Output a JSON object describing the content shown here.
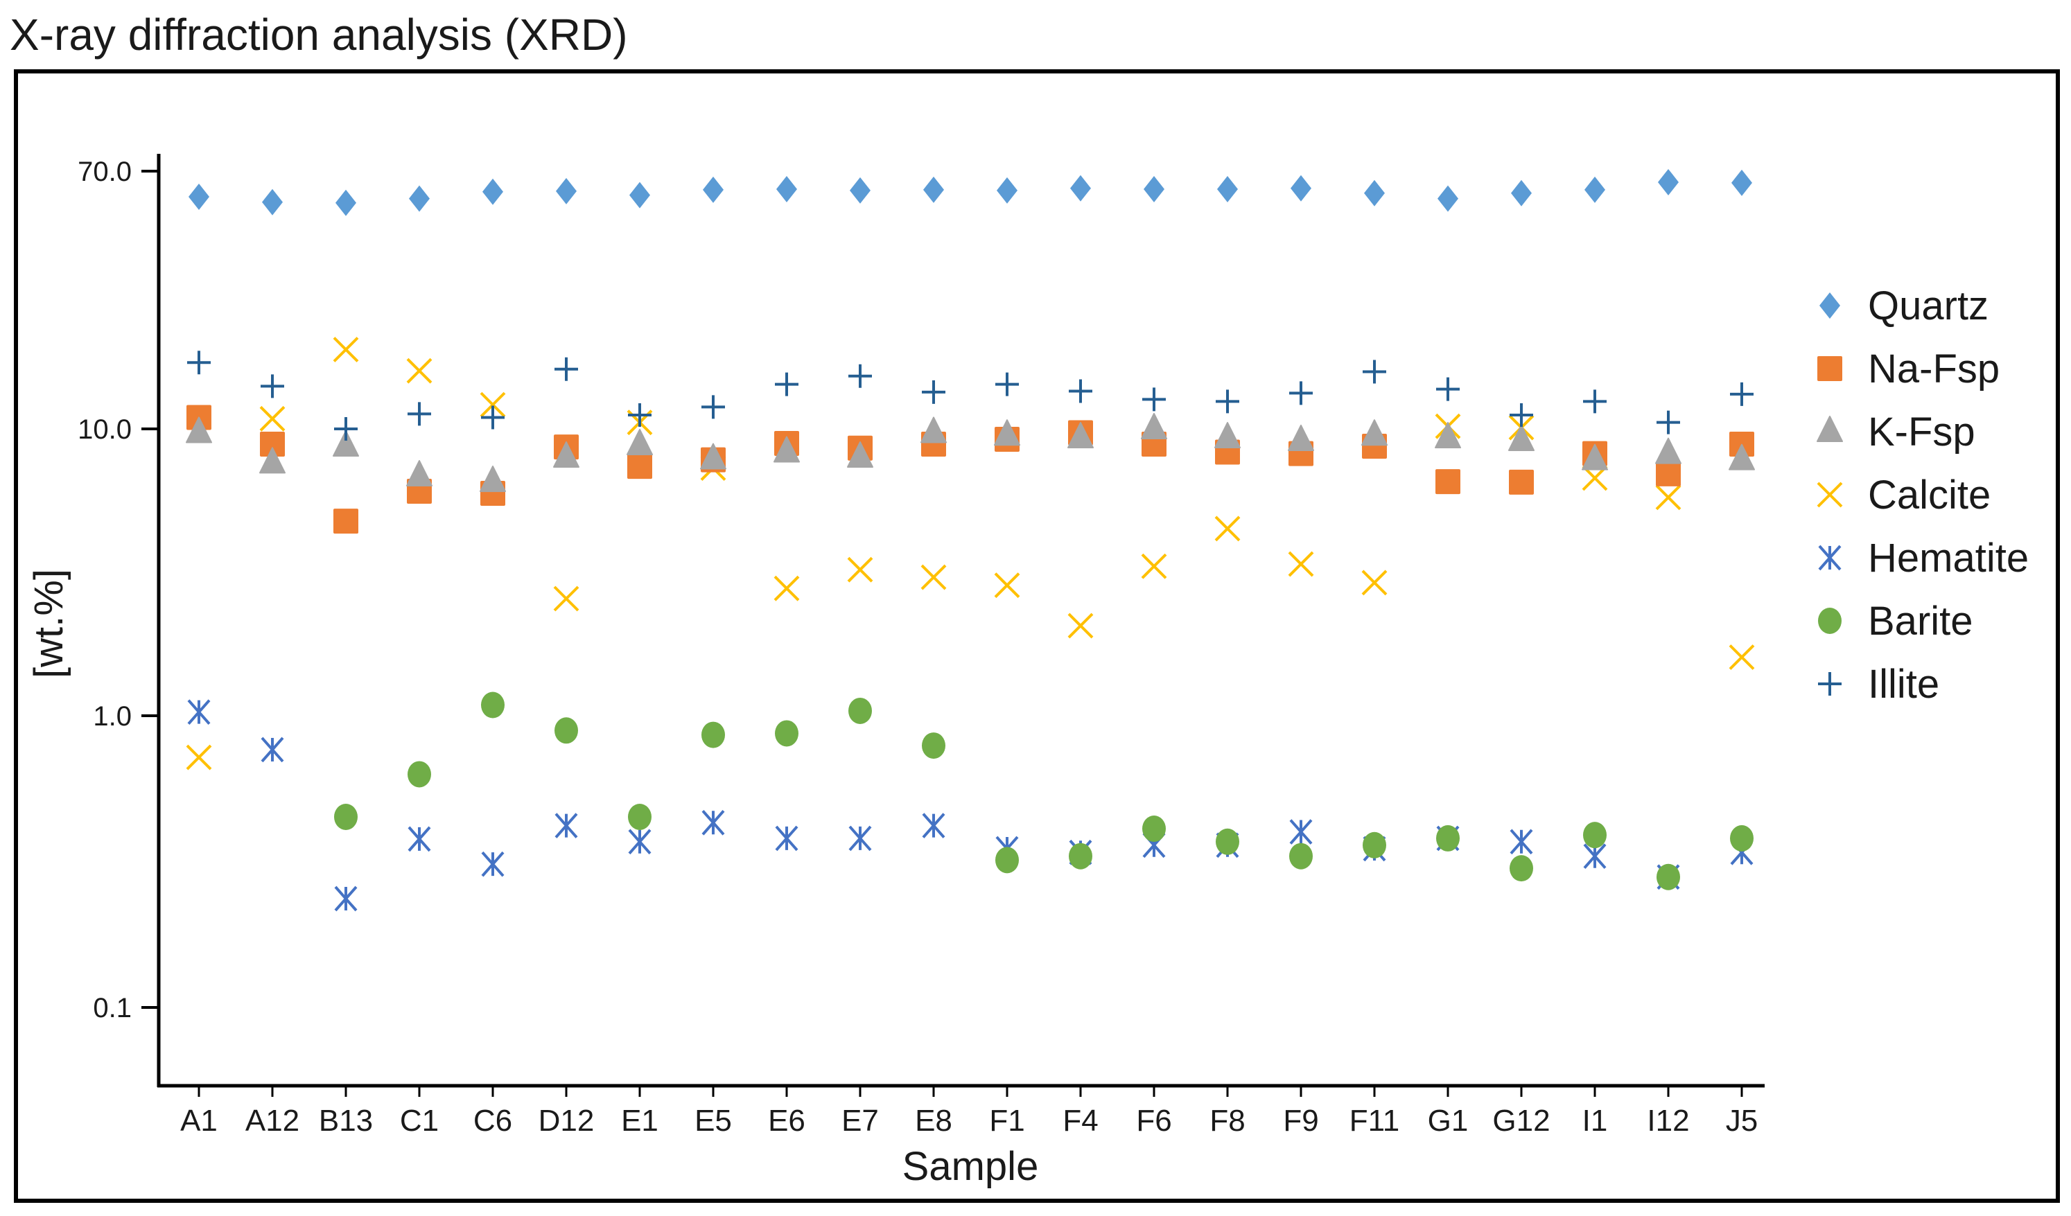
{
  "chart_data": {
    "type": "scatter",
    "title": "X-ray diffraction analysis (XRD)",
    "xlabel": "Sample",
    "ylabel": "[wt.%]",
    "yscale": "log",
    "ylim": [
      0.07,
      70
    ],
    "yticks": [
      {
        "value": 70,
        "label": "70.0"
      },
      {
        "value": 10,
        "label": "10.0"
      },
      {
        "value": 1,
        "label": "1.0"
      },
      {
        "value": 0.1,
        "label": "0.1"
      }
    ],
    "grid": false,
    "legend_position": "right",
    "categories": [
      "A1",
      "A12",
      "B13",
      "C1",
      "C6",
      "D12",
      "E1",
      "E5",
      "E6",
      "E7",
      "E8",
      "F1",
      "F4",
      "F6",
      "F8",
      "F9",
      "F11",
      "G1",
      "G12",
      "I1",
      "I12",
      "J5"
    ],
    "series": [
      {
        "name": "Quartz",
        "marker": "diamond",
        "color": "#5B9BD5",
        "values": [
          57.7,
          55.4,
          55.1,
          56.9,
          59.9,
          60.2,
          58.4,
          60.8,
          61.1,
          60.5,
          60.8,
          60.5,
          61.5,
          61.1,
          61.1,
          61.5,
          59.3,
          56.9,
          59.3,
          60.8,
          64.4,
          64.1
        ]
      },
      {
        "name": "Na-Fsp",
        "marker": "square",
        "color": "#ED7D31",
        "values": [
          10.9,
          8.85,
          4.77,
          6.06,
          5.96,
          8.65,
          7.4,
          7.8,
          8.9,
          8.57,
          8.85,
          9.2,
          9.7,
          8.85,
          8.3,
          8.2,
          8.7,
          6.55,
          6.52,
          8.2,
          6.97,
          8.85
        ]
      },
      {
        "name": "K-Fsp",
        "marker": "triangle",
        "color": "#A5A5A5",
        "values": [
          9.7,
          7.6,
          8.7,
          6.85,
          6.55,
          7.96,
          8.8,
          7.85,
          8.3,
          7.96,
          9.7,
          9.5,
          9.3,
          10.0,
          9.3,
          9.1,
          9.5,
          9.3,
          9.1,
          7.8,
          8.2,
          7.8
        ]
      },
      {
        "name": "Calcite",
        "marker": "x",
        "color": "#FFC000",
        "values": [
          0.72,
          10.8,
          18.2,
          15.5,
          12.0,
          2.56,
          10.5,
          7.3,
          2.78,
          3.23,
          3.04,
          2.85,
          2.06,
          3.32,
          4.49,
          3.38,
          2.91,
          10.2,
          10.1,
          6.74,
          5.77,
          1.6
        ]
      },
      {
        "name": "Hematite",
        "marker": "asterisk",
        "color": "#4472C4",
        "values": [
          1.03,
          0.765,
          0.236,
          0.378,
          0.31,
          0.42,
          0.37,
          0.43,
          0.38,
          0.38,
          0.42,
          0.35,
          0.34,
          0.36,
          0.36,
          0.4,
          0.35,
          0.38,
          0.37,
          0.33,
          0.28,
          0.34
        ]
      },
      {
        "name": "Barite",
        "marker": "circle",
        "color": "#70AD47",
        "values": [
          null,
          null,
          0.45,
          0.63,
          1.09,
          0.89,
          0.45,
          0.86,
          0.87,
          1.04,
          0.79,
          0.32,
          0.33,
          0.41,
          0.37,
          0.33,
          0.36,
          0.38,
          0.3,
          0.39,
          0.28,
          0.38
        ]
      },
      {
        "name": "Illite",
        "marker": "plus",
        "color": "#255E91",
        "values": [
          16.5,
          13.8,
          10.0,
          11.2,
          10.9,
          15.7,
          11.1,
          11.8,
          14.0,
          14.9,
          13.2,
          14.0,
          13.3,
          12.5,
          12.3,
          13.1,
          15.4,
          13.5,
          11.1,
          12.3,
          10.5,
          13.0
        ]
      }
    ]
  }
}
